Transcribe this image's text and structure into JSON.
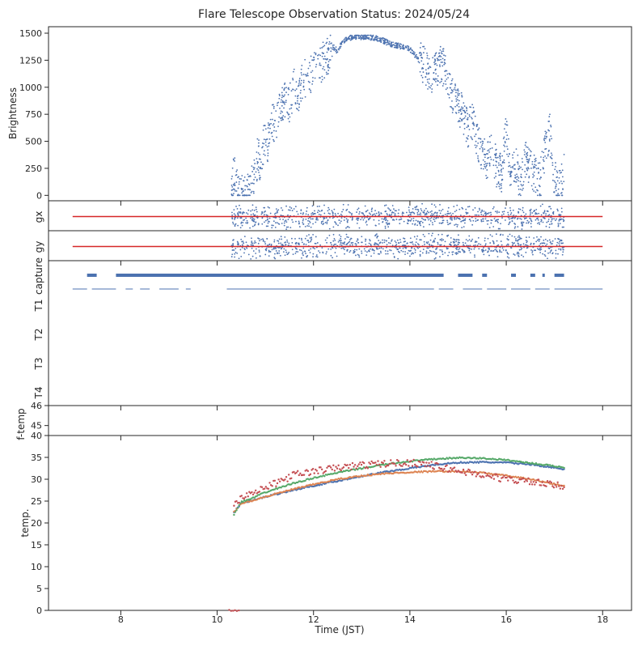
{
  "figure": {
    "title": "Flare Telescope Observation Status: 2024/05/24",
    "xlabel": "Time (JST)"
  },
  "chart_data": [
    {
      "type": "scatter",
      "panel": "brightness",
      "ylabel": "Brightness",
      "xlim": [
        6.5,
        18.6
      ],
      "ylim": [
        -50,
        1560
      ],
      "yticks": [
        0,
        250,
        500,
        750,
        1000,
        1250,
        1500
      ],
      "color": "#4c72b0",
      "x": [
        10.3,
        10.33,
        10.36,
        10.4,
        10.45,
        10.5,
        10.55,
        10.6,
        10.7,
        10.8,
        10.85,
        10.9,
        10.95,
        11.0,
        11.05,
        11.1,
        11.15,
        11.2,
        11.3,
        11.4,
        11.5,
        11.6,
        11.7,
        11.8,
        11.9,
        12.0,
        12.1,
        12.2,
        12.3,
        12.4,
        12.5,
        12.6,
        12.7,
        12.8,
        12.9,
        13.0,
        13.1,
        13.2,
        13.3,
        13.4,
        13.5,
        13.6,
        13.7,
        13.8,
        13.9,
        14.0,
        14.1,
        14.2,
        14.3,
        14.4,
        14.5,
        14.6,
        14.7,
        14.8,
        14.9,
        15.0,
        15.1,
        15.2,
        15.3,
        15.4,
        15.5,
        15.6,
        15.7,
        15.8,
        15.9,
        16.0,
        16.1,
        16.2,
        16.3,
        16.4,
        16.5,
        16.6,
        16.7,
        16.8,
        16.9,
        17.0,
        17.1,
        17.2
      ],
      "y": [
        0,
        150,
        220,
        100,
        20,
        30,
        10,
        40,
        100,
        250,
        380,
        300,
        450,
        550,
        480,
        650,
        700,
        620,
        780,
        900,
        850,
        1000,
        950,
        1100,
        1050,
        1200,
        1150,
        1250,
        1300,
        1380,
        1330,
        1420,
        1450,
        1460,
        1470,
        1465,
        1470,
        1460,
        1455,
        1440,
        1420,
        1400,
        1390,
        1380,
        1370,
        1350,
        1300,
        1250,
        1200,
        1150,
        1100,
        1230,
        1180,
        1050,
        900,
        850,
        750,
        600,
        700,
        500,
        400,
        300,
        450,
        250,
        200,
        600,
        150,
        300,
        100,
        350,
        250,
        180,
        120,
        400,
        600,
        150,
        50,
        200
      ]
    },
    {
      "type": "scatter",
      "panel": "gx",
      "ylabel": "gx",
      "xlim": [
        6.5,
        18.6
      ],
      "color": "#4c72b0",
      "reference_line": {
        "x": [
          7.0,
          18.0
        ],
        "y": 0,
        "color": "#d62728"
      }
    },
    {
      "type": "scatter",
      "panel": "gy",
      "ylabel": "gy",
      "xlim": [
        6.5,
        18.6
      ],
      "color": "#4c72b0",
      "reference_line": {
        "x": [
          7.0,
          18.0
        ],
        "y": 0,
        "color": "#d62728"
      }
    },
    {
      "type": "scatter",
      "panel": "status",
      "ylabels": [
        "capture",
        "T1",
        "T2",
        "T3",
        "T4"
      ],
      "xlim": [
        6.5,
        18.6
      ],
      "capture_segments": [
        [
          7.3,
          7.5
        ],
        [
          7.9,
          14.7
        ],
        [
          15.0,
          15.3
        ],
        [
          15.5,
          15.6
        ],
        [
          16.1,
          16.2
        ],
        [
          16.5,
          16.6
        ],
        [
          16.75,
          16.8
        ],
        [
          17.0,
          17.2
        ]
      ],
      "t1_segments": [
        [
          7.0,
          7.3
        ],
        [
          7.4,
          7.9
        ],
        [
          8.1,
          8.25
        ],
        [
          8.4,
          8.6
        ],
        [
          8.8,
          9.2
        ],
        [
          9.35,
          9.45
        ],
        [
          10.2,
          14.5
        ],
        [
          14.6,
          14.9
        ],
        [
          15.1,
          15.5
        ],
        [
          15.6,
          16.0
        ],
        [
          16.1,
          16.5
        ],
        [
          16.6,
          16.9
        ],
        [
          17.0,
          18.0
        ]
      ],
      "color": "#4c72b0"
    },
    {
      "type": "scatter",
      "panel": "f-temp",
      "ylabel": "f-temp",
      "xlim": [
        6.5,
        18.6
      ],
      "ylim": [
        44.5,
        46
      ],
      "yticks": [
        45,
        46
      ]
    },
    {
      "type": "scatter",
      "panel": "temp",
      "ylabel": "temp.",
      "xlim": [
        6.5,
        18.6
      ],
      "ylim": [
        0,
        40
      ],
      "yticks": [
        0,
        5,
        10,
        15,
        20,
        25,
        30,
        35,
        40
      ],
      "xticks": [
        8,
        10,
        12,
        14,
        16,
        18
      ],
      "series": [
        {
          "color": "#4c72b0",
          "x": [
            10.35,
            10.5,
            10.7,
            11.0,
            11.5,
            12.0,
            12.5,
            13.0,
            13.5,
            14.0,
            14.5,
            15.0,
            15.5,
            16.0,
            16.5,
            17.0,
            17.2
          ],
          "y": [
            22.5,
            24.5,
            25.0,
            26.0,
            27.3,
            28.5,
            29.6,
            30.7,
            31.7,
            32.5,
            33.3,
            33.8,
            33.9,
            33.8,
            33.4,
            32.6,
            32.2
          ]
        },
        {
          "color": "#dd8452",
          "x": [
            10.35,
            10.5,
            10.7,
            11.0,
            11.5,
            12.0,
            12.5,
            13.0,
            13.5,
            14.0,
            14.5,
            15.0,
            15.5,
            16.0,
            16.5,
            17.0,
            17.2
          ],
          "y": [
            22.5,
            24.5,
            25.0,
            26.0,
            27.5,
            28.8,
            30.0,
            30.8,
            31.3,
            31.6,
            31.8,
            31.8,
            31.5,
            30.8,
            30.0,
            28.9,
            28.4
          ]
        },
        {
          "color": "#55a868",
          "x": [
            10.35,
            10.5,
            10.7,
            11.0,
            11.5,
            12.0,
            12.5,
            13.0,
            13.5,
            14.0,
            14.5,
            15.0,
            15.5,
            16.0,
            16.5,
            17.0,
            17.2
          ],
          "y": [
            22.0,
            24.8,
            25.5,
            27.0,
            28.8,
            30.3,
            31.5,
            32.5,
            33.4,
            34.1,
            34.6,
            34.9,
            34.8,
            34.4,
            33.7,
            33.0,
            32.7
          ]
        },
        {
          "color": "#c44e52",
          "x": [
            10.35,
            10.5,
            10.7,
            11.0,
            11.3,
            11.6,
            12.0,
            12.5,
            13.0,
            13.5,
            14.0,
            14.3,
            14.6,
            15.0,
            15.5,
            16.0,
            16.5,
            17.0,
            17.2
          ],
          "y": [
            24.0,
            26.0,
            27.0,
            28.0,
            29.5,
            31.0,
            31.8,
            32.6,
            33.2,
            33.6,
            33.8,
            33.6,
            32.8,
            32.0,
            31.0,
            30.0,
            29.4,
            28.6,
            28.3
          ]
        },
        {
          "color": "#c44e52",
          "x": [
            10.25,
            10.45
          ],
          "y": [
            0,
            0
          ]
        }
      ]
    }
  ]
}
